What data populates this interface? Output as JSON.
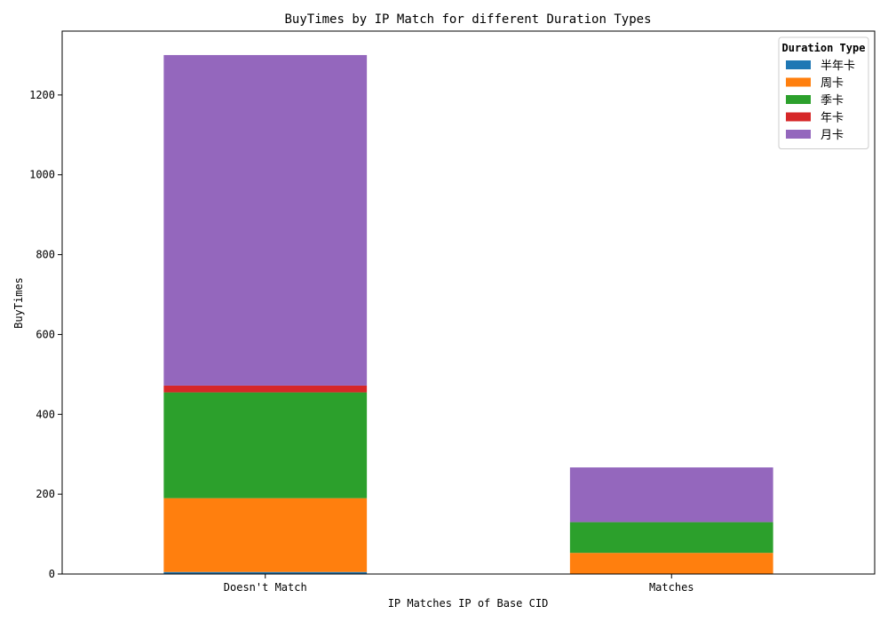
{
  "chart_data": {
    "type": "bar",
    "stacked": true,
    "title": "BuyTimes by IP Match for different Duration Types",
    "xlabel": "IP Matches IP of Base CID",
    "ylabel": "BuyTimes",
    "categories": [
      "Doesn't Match",
      "Matches"
    ],
    "ylim": [
      0,
      1360
    ],
    "yticks": [
      0,
      200,
      400,
      600,
      800,
      1000,
      1200
    ],
    "grid": false,
    "legend": {
      "title": "Duration Type",
      "placement": "top-right"
    },
    "series": [
      {
        "name": "半年卡",
        "color": "#1f77b4",
        "values": [
          5,
          0
        ]
      },
      {
        "name": "周卡",
        "color": "#ff7f0e",
        "values": [
          185,
          53
        ]
      },
      {
        "name": "季卡",
        "color": "#2ca02c",
        "values": [
          265,
          77
        ]
      },
      {
        "name": "年卡",
        "color": "#d62728",
        "values": [
          17,
          0
        ]
      },
      {
        "name": "月卡",
        "color": "#9467bd",
        "values": [
          828,
          137
        ]
      }
    ]
  }
}
